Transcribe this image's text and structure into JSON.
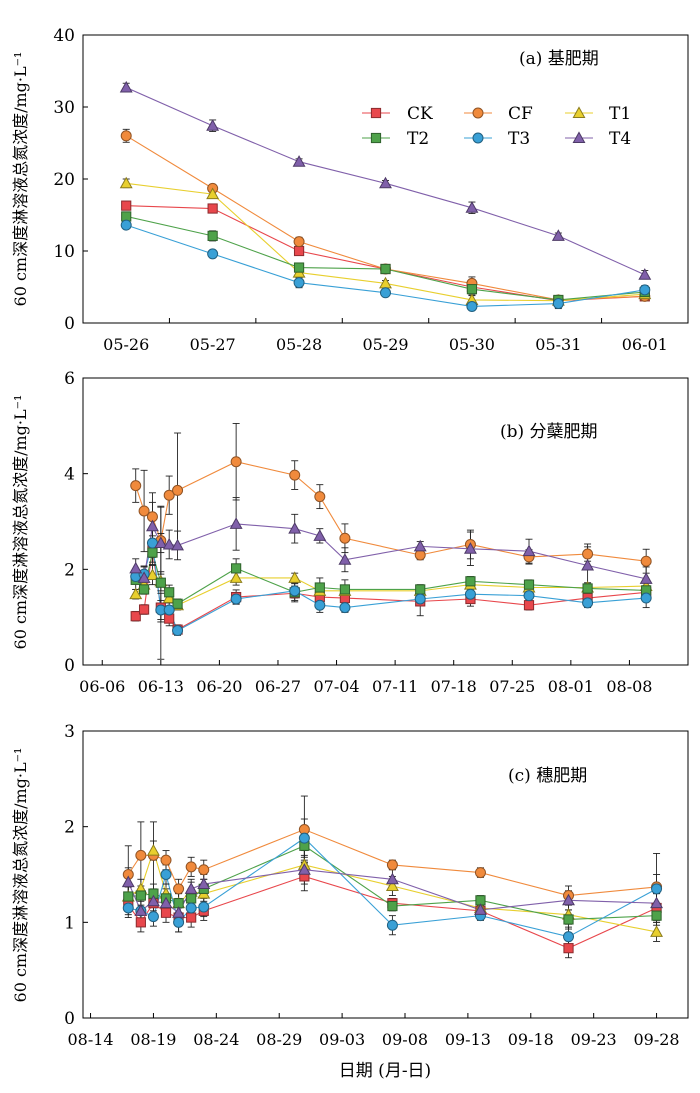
{
  "colors": {
    "CK": "#e8474c",
    "CF": "#f08a3c",
    "T1": "#e8cf2e",
    "T2": "#4ea24a",
    "T3": "#39a0d6",
    "T4": "#8060aa"
  },
  "markers": {
    "CK": "square",
    "CF": "circle",
    "T1": "triangle",
    "T2": "square",
    "T3": "circle",
    "T4": "triangle"
  },
  "xlabel": "日期 (月-日)",
  "chart_data": [
    {
      "id": "a",
      "type": "line",
      "title": "(a) 基肥期",
      "ylabel": "60 cm深度淋溶液总氮浓度/mg·L⁻¹",
      "ylim": [
        0,
        40
      ],
      "yticks": [
        0,
        10,
        20,
        30,
        40
      ],
      "categories": [
        "05-26",
        "05-27",
        "05-28",
        "05-29",
        "05-30",
        "05-31",
        "06-01"
      ],
      "legend_position": "upper-right",
      "series": [
        {
          "name": "CK",
          "values": [
            16.3,
            15.9,
            10.0,
            7.5,
            5.0,
            3.1,
            3.7
          ],
          "errors": [
            0.6,
            0.6,
            0.6,
            0.4,
            0.8,
            0.3,
            0.4
          ]
        },
        {
          "name": "CF",
          "values": [
            26.0,
            18.7,
            11.3,
            7.5,
            5.5,
            3.2,
            3.7
          ],
          "errors": [
            0.9,
            0.5,
            0.6,
            0.4,
            0.9,
            0.3,
            0.4
          ]
        },
        {
          "name": "T1",
          "values": [
            19.4,
            17.9,
            7.0,
            5.5,
            3.2,
            3.1,
            4.0
          ],
          "errors": [
            0.6,
            0.5,
            0.5,
            0.4,
            0.6,
            0.3,
            0.4
          ]
        },
        {
          "name": "T2",
          "values": [
            14.8,
            12.1,
            7.7,
            7.5,
            4.7,
            3.2,
            4.3
          ],
          "errors": [
            0.5,
            0.7,
            0.6,
            0.4,
            0.8,
            0.3,
            0.4
          ]
        },
        {
          "name": "T3",
          "values": [
            13.6,
            9.6,
            5.6,
            4.2,
            2.3,
            2.7,
            4.6
          ],
          "errors": [
            0.4,
            0.4,
            0.7,
            0.4,
            0.5,
            0.7,
            0.6
          ]
        },
        {
          "name": "T4",
          "values": [
            32.7,
            27.4,
            22.4,
            19.4,
            16.0,
            12.1,
            6.7
          ],
          "errors": [
            0.6,
            0.8,
            0.4,
            0.4,
            0.8,
            0.4,
            0.6
          ]
        }
      ]
    },
    {
      "id": "b",
      "type": "line",
      "title": "(b) 分蘖肥期",
      "ylabel": "60 cm深度淋溶液总氮浓度/mg·L⁻¹",
      "ylim": [
        0,
        6
      ],
      "yticks": [
        0,
        2,
        4,
        6
      ],
      "xtick_labels": [
        "06-06",
        "06-13",
        "06-20",
        "06-27",
        "07-04",
        "07-11",
        "07-18",
        "07-25",
        "08-01",
        "08-08"
      ],
      "x_dates": [
        "06-10",
        "06-11",
        "06-12",
        "06-13",
        "06-14",
        "06-15",
        "06-22",
        "06-29",
        "07-02",
        "07-05",
        "07-14",
        "07-20",
        "07-27",
        "08-03",
        "08-10"
      ],
      "series": [
        {
          "name": "CK",
          "values": [
            1.02,
            1.16,
            2.4,
            1.2,
            0.97,
            0.74,
            1.42,
            1.5,
            1.42,
            1.4,
            1.33,
            1.38,
            1.25,
            1.4,
            1.52
          ],
          "errors": [
            0.1,
            0.1,
            0.3,
            0.3,
            0.15,
            0.1,
            0.15,
            0.15,
            0.15,
            0.15,
            0.3,
            0.15,
            0.1,
            0.1,
            0.1
          ]
        },
        {
          "name": "CF",
          "values": [
            3.75,
            3.22,
            3.1,
            2.6,
            3.55,
            3.65,
            4.25,
            3.97,
            3.52,
            2.65,
            2.3,
            2.52,
            2.26,
            2.32,
            2.17
          ],
          "errors": [
            0.35,
            0.85,
            0.5,
            0.7,
            0.4,
            1.2,
            0.8,
            0.3,
            0.25,
            0.3,
            0.1,
            0.3,
            0.15,
            0.15,
            0.25
          ]
        },
        {
          "name": "T1",
          "values": [
            1.48,
            1.68,
            1.88,
            1.75,
            1.4,
            1.25,
            1.82,
            1.82,
            1.55,
            1.55,
            1.55,
            1.68,
            1.62,
            1.62,
            1.65
          ],
          "errors": [
            0.1,
            0.1,
            0.2,
            0.2,
            0.1,
            0.1,
            0.15,
            0.1,
            0.1,
            0.1,
            0.1,
            0.1,
            0.1,
            0.1,
            0.1
          ]
        },
        {
          "name": "T2",
          "values": [
            1.78,
            1.58,
            2.35,
            1.72,
            1.52,
            1.28,
            2.02,
            1.52,
            1.62,
            1.58,
            1.58,
            1.75,
            1.68,
            1.6,
            1.56
          ],
          "errors": [
            0.2,
            0.1,
            0.2,
            1.6,
            0.15,
            0.1,
            0.2,
            0.2,
            0.2,
            0.2,
            0.1,
            0.1,
            0.1,
            0.1,
            0.1
          ]
        },
        {
          "name": "T3",
          "values": [
            1.85,
            1.9,
            2.55,
            1.15,
            1.15,
            0.72,
            1.38,
            1.55,
            1.25,
            1.2,
            1.38,
            1.48,
            1.45,
            1.3,
            1.4
          ],
          "errors": [
            0.15,
            0.15,
            0.3,
            0.2,
            0.15,
            0.1,
            0.1,
            0.15,
            0.15,
            0.1,
            0.1,
            0.15,
            0.1,
            0.1,
            0.2
          ]
        },
        {
          "name": "T4",
          "values": [
            2.02,
            1.82,
            2.9,
            2.55,
            2.52,
            2.5,
            2.95,
            2.85,
            2.7,
            2.2,
            2.48,
            2.43,
            2.38,
            2.08,
            1.8
          ],
          "errors": [
            0.2,
            0.25,
            0.5,
            0.2,
            0.3,
            0.3,
            0.55,
            0.3,
            0.15,
            0.25,
            0.1,
            0.35,
            0.25,
            0.45,
            0.25
          ]
        }
      ]
    },
    {
      "id": "c",
      "type": "line",
      "title": "(c) 穗肥期",
      "ylabel": "60 cm深度淋溶液总氮浓度/mg·L⁻¹",
      "ylim": [
        0,
        3
      ],
      "yticks": [
        0,
        1,
        2,
        3
      ],
      "xtick_labels": [
        "08-14",
        "08-19",
        "08-24",
        "08-29",
        "09-03",
        "09-08",
        "09-13",
        "09-18",
        "09-23",
        "09-28"
      ],
      "x_dates": [
        "08-17",
        "08-18",
        "08-19",
        "08-20",
        "08-21",
        "08-22",
        "08-23",
        "08-31",
        "09-07",
        "09-14",
        "09-21",
        "09-28"
      ],
      "series": [
        {
          "name": "CK",
          "values": [
            1.18,
            1.0,
            1.2,
            1.1,
            1.05,
            1.05,
            1.12,
            1.48,
            1.2,
            1.12,
            0.73,
            1.15
          ],
          "errors": [
            0.1,
            0.1,
            0.1,
            0.1,
            0.15,
            0.1,
            0.1,
            0.15,
            0.05,
            0.05,
            0.1,
            0.15
          ]
        },
        {
          "name": "CF",
          "values": [
            1.5,
            1.7,
            1.7,
            1.65,
            1.35,
            1.58,
            1.55,
            1.97,
            1.6,
            1.52,
            1.28,
            1.37
          ],
          "errors": [
            0.3,
            0.35,
            0.35,
            0.1,
            0.1,
            0.1,
            0.1,
            0.35,
            0.05,
            0.05,
            0.1,
            0.35
          ]
        },
        {
          "name": "T1",
          "values": [
            1.27,
            1.35,
            1.75,
            1.3,
            1.2,
            1.32,
            1.3,
            1.6,
            1.38,
            1.15,
            1.08,
            0.9
          ],
          "errors": [
            0.1,
            0.1,
            0.1,
            0.1,
            0.1,
            0.1,
            0.1,
            0.15,
            0.1,
            0.05,
            0.1,
            0.1
          ]
        },
        {
          "name": "T2",
          "values": [
            1.27,
            1.28,
            1.3,
            1.25,
            1.2,
            1.25,
            1.35,
            1.8,
            1.17,
            1.23,
            1.03,
            1.07
          ],
          "errors": [
            0.1,
            0.1,
            0.1,
            0.1,
            0.1,
            0.1,
            0.1,
            0.15,
            0.05,
            0.05,
            0.1,
            0.1
          ]
        },
        {
          "name": "T3",
          "values": [
            1.15,
            1.12,
            1.06,
            1.5,
            1.0,
            1.15,
            1.16,
            1.88,
            0.97,
            1.07,
            0.85,
            1.35
          ],
          "errors": [
            0.1,
            0.15,
            0.1,
            0.1,
            0.1,
            0.1,
            0.1,
            0.2,
            0.1,
            0.05,
            0.1,
            0.15
          ]
        },
        {
          "name": "T4",
          "values": [
            1.42,
            1.12,
            1.22,
            1.2,
            1.1,
            1.35,
            1.4,
            1.55,
            1.45,
            1.13,
            1.23,
            1.2
          ],
          "errors": [
            0.15,
            0.1,
            0.1,
            0.1,
            0.1,
            0.1,
            0.1,
            0.15,
            0.1,
            0.05,
            0.1,
            0.1
          ]
        }
      ]
    }
  ]
}
